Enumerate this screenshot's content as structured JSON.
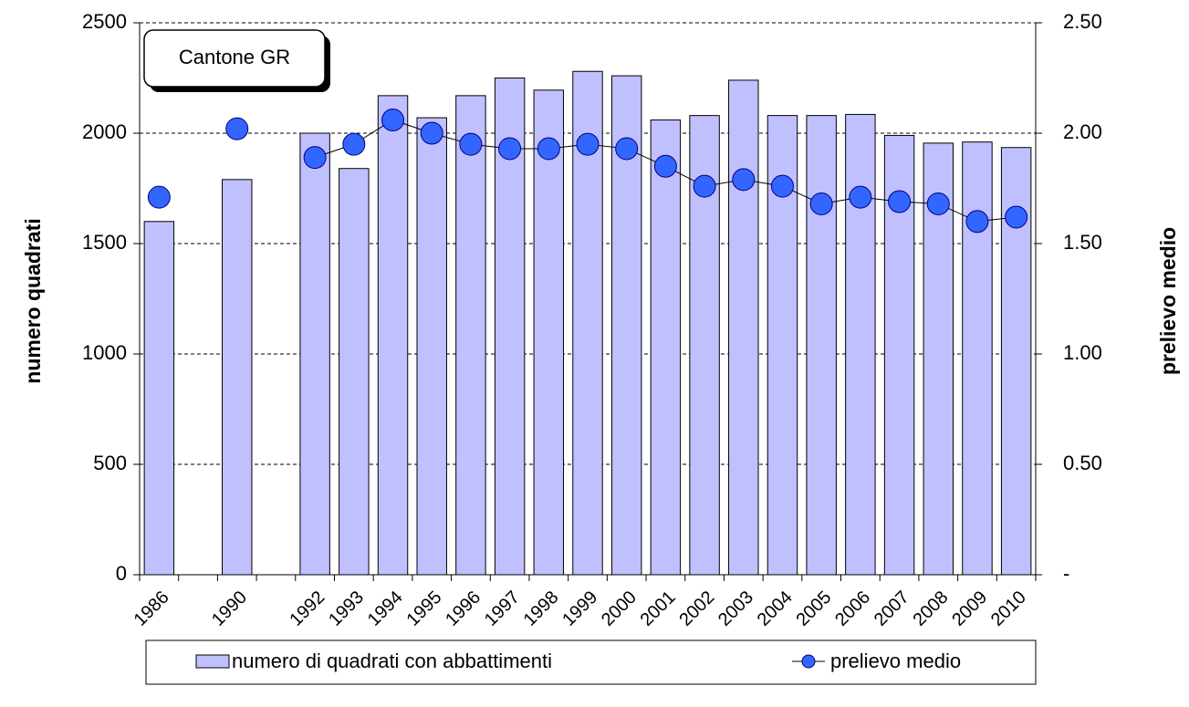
{
  "chart_data": {
    "type": "bar",
    "annotation": "Cantone GR",
    "y_label": "numero quadrati",
    "y2_label": "prelievo medio",
    "categories": [
      "1986",
      null,
      "1990",
      null,
      "1992",
      "1993",
      "1994",
      "1995",
      "1996",
      "1997",
      "1998",
      "1999",
      "2000",
      "2001",
      "2002",
      "2003",
      "2004",
      "2005",
      "2006",
      "2007",
      "2008",
      "2009",
      "2010"
    ],
    "series": [
      {
        "name": "numero di quadrati con abbattimenti",
        "type": "bar",
        "color": "#c0c0ff",
        "values": [
          1600,
          null,
          1790,
          null,
          2000,
          1840,
          2170,
          2070,
          2170,
          2250,
          2195,
          2280,
          2260,
          2060,
          2080,
          2240,
          2080,
          2080,
          2085,
          1990,
          1955,
          1960,
          1935
        ]
      },
      {
        "name": "prelievo medio",
        "type": "line",
        "color": "#3366ff",
        "axis": "y2",
        "values": [
          1.71,
          null,
          2.02,
          null,
          1.89,
          1.95,
          2.06,
          2.0,
          1.95,
          1.93,
          1.93,
          1.95,
          1.93,
          1.85,
          1.76,
          1.79,
          1.76,
          1.68,
          1.71,
          1.69,
          1.68,
          1.6,
          1.62
        ]
      }
    ],
    "ylim": [
      0,
      2500
    ],
    "yticks": [
      0,
      500,
      1000,
      1500,
      2000,
      2500
    ],
    "y2lim": [
      0,
      2.5
    ],
    "y2ticks": [
      {
        "value": 0,
        "label": "-"
      },
      {
        "value": 0.5,
        "label": "0.50"
      },
      {
        "value": 1,
        "label": "1.00"
      },
      {
        "value": 1.5,
        "label": "1.50"
      },
      {
        "value": 2,
        "label": "2.00"
      },
      {
        "value": 2.5,
        "label": "2.50"
      }
    ],
    "grid": true,
    "legend": "bottom"
  }
}
